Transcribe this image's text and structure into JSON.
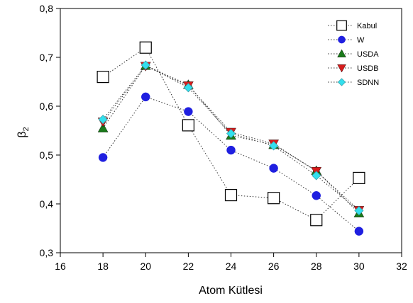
{
  "chart_data": {
    "type": "scatter",
    "xlabel": "Atom Kütlesi",
    "ylabel": "β",
    "ylabel_subscript": "2",
    "xlim": [
      16,
      32
    ],
    "ylim": [
      0.3,
      0.8
    ],
    "xticks": [
      "16",
      "18",
      "20",
      "22",
      "24",
      "26",
      "28",
      "30",
      "32"
    ],
    "yticks": [
      "0,3",
      "0,4",
      "0,5",
      "0,6",
      "0,7",
      "0,8"
    ],
    "grid": false,
    "legend_position": "top-right",
    "x": [
      18,
      20,
      22,
      24,
      26,
      28,
      30
    ],
    "series": [
      {
        "name": "Kabul",
        "marker": "square-open",
        "color": "#000000",
        "line": "dotted",
        "values": [
          0.66,
          0.72,
          0.561,
          0.418,
          0.412,
          0.367,
          0.453
        ]
      },
      {
        "name": "W",
        "marker": "circle",
        "color": "#1f1fe0",
        "line": "dotted",
        "values": [
          0.495,
          0.619,
          0.589,
          0.51,
          0.473,
          0.417,
          0.344
        ]
      },
      {
        "name": "USDA",
        "marker": "triangle-up",
        "color": "#1a7a1a",
        "line": "dotted",
        "values": [
          0.555,
          0.683,
          0.644,
          0.54,
          0.521,
          0.468,
          0.381
        ]
      },
      {
        "name": "USDB",
        "marker": "triangle-down",
        "color": "#d61c1c",
        "line": "dotted",
        "values": [
          0.568,
          0.682,
          0.642,
          0.547,
          0.523,
          0.467,
          0.387
        ]
      },
      {
        "name": "SDNN",
        "marker": "diamond",
        "color": "#33e0ee",
        "line": "dotted",
        "values": [
          0.573,
          0.684,
          0.638,
          0.544,
          0.519,
          0.458,
          0.386
        ]
      }
    ]
  }
}
